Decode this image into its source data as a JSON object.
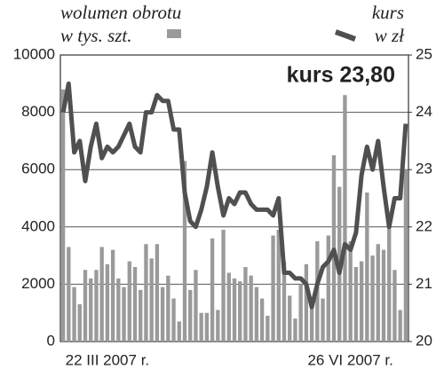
{
  "chart_data": {
    "type": "bar-line",
    "annotation": "kurs 23,80",
    "categories": [
      null,
      null,
      null,
      null,
      null,
      null,
      null,
      null,
      "22 III 2007 r.",
      null,
      null,
      null,
      null,
      null,
      null,
      null,
      null,
      null,
      null,
      null,
      null,
      null,
      null,
      null,
      null,
      null,
      null,
      null,
      null,
      null,
      null,
      null,
      null,
      null,
      null,
      null,
      null,
      null,
      null,
      null,
      null,
      null,
      null,
      null,
      null,
      null,
      null,
      null,
      null,
      null,
      null,
      null,
      "26 VI 2007 r.",
      null,
      null,
      null,
      null,
      null,
      null,
      null,
      null,
      null,
      null
    ],
    "series": [
      {
        "name": "wolumen obrotu",
        "unit": "w tys. szt.",
        "type": "bar",
        "color": "#9a9a9a",
        "values": [
          8800,
          3300,
          1900,
          1300,
          2500,
          2200,
          2500,
          3300,
          2700,
          3200,
          2200,
          1900,
          2800,
          2600,
          1800,
          3400,
          2900,
          3400,
          1900,
          2300,
          1500,
          700,
          6300,
          1800,
          2500,
          1000,
          1000,
          3600,
          1100,
          3900,
          2400,
          2200,
          2100,
          2600,
          2300,
          1900,
          1500,
          900,
          3700,
          3900,
          2800,
          1600,
          800,
          2000,
          2700,
          1400,
          3500,
          1500,
          3700,
          6500,
          5400,
          8600,
          3500,
          2600,
          2800,
          5200,
          3000,
          3400,
          3200,
          4000,
          2500,
          1100,
          6000
        ]
      },
      {
        "name": "kurs",
        "unit": "w zł",
        "type": "line",
        "axis": "y2",
        "color": "#505050",
        "values": [
          24.0,
          24.5,
          23.3,
          23.5,
          22.8,
          23.4,
          23.8,
          23.2,
          23.4,
          23.3,
          23.4,
          23.6,
          23.8,
          23.4,
          23.3,
          24.0,
          24.0,
          24.3,
          24.2,
          24.2,
          23.7,
          23.7,
          22.6,
          22.1,
          22.0,
          22.3,
          22.7,
          23.3,
          22.7,
          22.2,
          22.5,
          22.4,
          22.6,
          22.6,
          22.4,
          22.3,
          22.3,
          22.3,
          22.2,
          22.5,
          21.2,
          21.2,
          21.1,
          21.1,
          21.0,
          20.6,
          21.0,
          21.3,
          21.4,
          21.6,
          21.2,
          21.7,
          21.6,
          21.9,
          22.9,
          23.4,
          23.0,
          23.5,
          22.7,
          22.0,
          22.5,
          22.5,
          23.8
        ]
      }
    ],
    "ylim": [
      0,
      10000
    ],
    "yticks": [
      0,
      2000,
      4000,
      6000,
      8000,
      10000
    ],
    "y2lim": [
      20,
      25
    ],
    "y2ticks": [
      20,
      21,
      22,
      23,
      24,
      25
    ],
    "grid": true
  }
}
